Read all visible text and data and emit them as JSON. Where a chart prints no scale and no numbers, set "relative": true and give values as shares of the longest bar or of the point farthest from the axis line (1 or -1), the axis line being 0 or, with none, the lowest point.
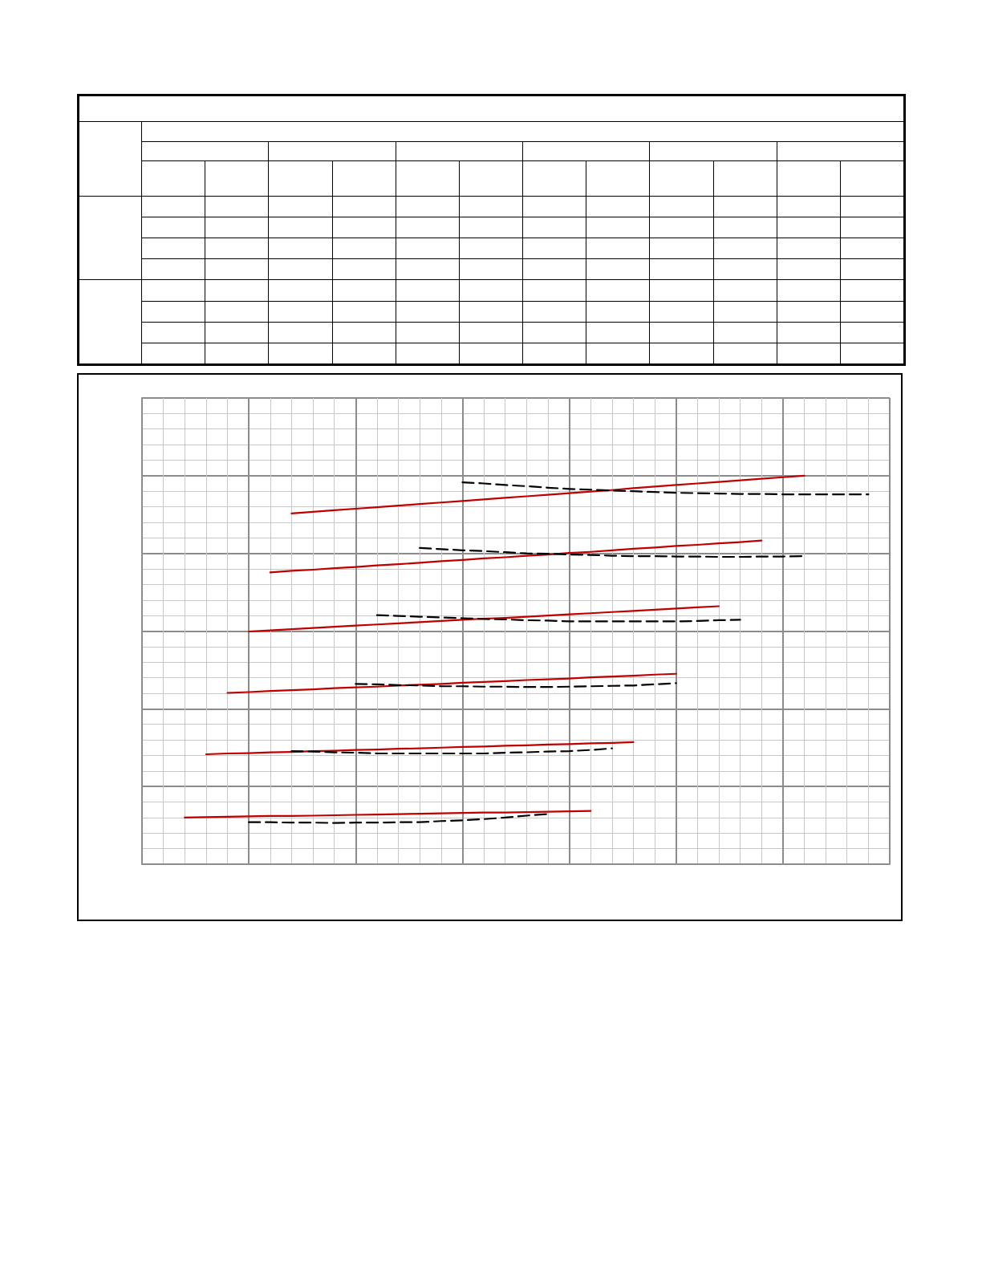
{
  "chart_data": {
    "type": "line",
    "relative": true,
    "grid": true,
    "marker": "none",
    "categories": [
      null,
      null,
      null,
      null,
      null,
      null,
      null,
      null,
      null,
      null,
      null,
      null,
      null,
      null,
      null,
      null,
      null,
      null,
      null,
      null,
      null,
      null,
      null,
      null,
      null,
      null,
      null,
      null,
      null,
      null,
      null,
      null,
      null,
      null,
      null,
      null
    ],
    "series": [
      {
        "color": "#c00000",
        "line_style": "solid",
        "values": [
          null,
          null,
          null,
          null,
          null,
          null,
          null,
          0.903,
          0.907,
          0.911,
          0.915,
          0.919,
          0.923,
          0.927,
          0.931,
          0.935,
          0.939,
          0.943,
          0.947,
          0.951,
          0.955,
          0.959,
          0.963,
          0.968,
          0.972,
          0.976,
          0.98,
          0.984,
          0.988,
          0.992,
          0.996,
          1.0,
          null,
          null,
          null,
          null
        ]
      },
      {
        "color": "#c00000",
        "line_style": "solid",
        "values": [
          null,
          null,
          null,
          null,
          null,
          null,
          0.751,
          0.755,
          0.758,
          0.762,
          0.765,
          0.769,
          0.772,
          0.776,
          0.78,
          0.783,
          0.787,
          0.79,
          0.794,
          0.797,
          0.801,
          0.804,
          0.808,
          0.812,
          0.815,
          0.819,
          0.822,
          0.826,
          0.829,
          0.833,
          null,
          null,
          null,
          null,
          null,
          null
        ]
      },
      {
        "color": "#c00000",
        "line_style": "solid",
        "values": [
          null,
          null,
          null,
          null,
          null,
          0.599,
          0.602,
          0.605,
          0.608,
          0.611,
          0.614,
          0.617,
          0.62,
          0.623,
          0.626,
          0.629,
          0.632,
          0.634,
          0.637,
          0.64,
          0.643,
          0.646,
          0.649,
          0.652,
          0.655,
          0.658,
          0.661,
          0.664,
          null,
          null,
          null,
          null,
          null,
          null,
          null,
          null
        ]
      },
      {
        "color": "#c00000",
        "line_style": "solid",
        "values": [
          null,
          null,
          null,
          null,
          0.441,
          0.443,
          0.446,
          0.448,
          0.45,
          0.453,
          0.455,
          0.457,
          0.46,
          0.462,
          0.464,
          0.467,
          0.469,
          0.471,
          0.474,
          0.476,
          0.478,
          0.481,
          0.483,
          0.485,
          0.488,
          0.49,
          null,
          null,
          null,
          null,
          null,
          null,
          null,
          null,
          null,
          null
        ]
      },
      {
        "color": "#c00000",
        "line_style": "solid",
        "values": [
          null,
          null,
          null,
          0.283,
          0.285,
          0.286,
          0.288,
          0.289,
          0.291,
          0.292,
          0.294,
          0.295,
          0.297,
          0.298,
          0.3,
          0.302,
          0.303,
          0.305,
          0.306,
          0.308,
          0.309,
          0.311,
          0.312,
          0.314,
          null,
          null,
          null,
          null,
          null,
          null,
          null,
          null,
          null,
          null,
          null,
          null
        ]
      },
      {
        "color": "#c00000",
        "line_style": "solid",
        "values": [
          null,
          null,
          0.12,
          0.121,
          0.122,
          0.123,
          0.124,
          0.124,
          0.125,
          0.126,
          0.127,
          0.128,
          0.129,
          0.13,
          0.131,
          0.132,
          0.133,
          0.133,
          0.134,
          0.135,
          0.136,
          0.137,
          null,
          null,
          null,
          null,
          null,
          null,
          null,
          null,
          null,
          null,
          null,
          null,
          null,
          null
        ]
      },
      {
        "color": "#000000",
        "line_style": "dashed",
        "values": [
          null,
          null,
          null,
          null,
          null,
          null,
          null,
          null,
          null,
          null,
          null,
          null,
          null,
          null,
          null,
          0.983,
          0.98,
          0.976,
          0.973,
          0.969,
          0.966,
          0.964,
          0.962,
          0.96,
          0.958,
          0.956,
          0.955,
          0.954,
          0.953,
          0.953,
          0.952,
          0.952,
          0.952,
          0.952,
          0.952,
          null
        ]
      },
      {
        "color": "#000000",
        "line_style": "dashed",
        "values": [
          null,
          null,
          null,
          null,
          null,
          null,
          null,
          null,
          null,
          null,
          null,
          null,
          null,
          0.814,
          0.811,
          0.808,
          0.806,
          0.803,
          0.8,
          0.799,
          0.797,
          0.796,
          0.794,
          0.793,
          0.793,
          0.792,
          0.792,
          0.791,
          0.791,
          0.792,
          0.792,
          0.793,
          null,
          null,
          null,
          null
        ]
      },
      {
        "color": "#000000",
        "line_style": "dashed",
        "values": [
          null,
          null,
          null,
          null,
          null,
          null,
          null,
          null,
          null,
          null,
          null,
          0.641,
          0.639,
          0.637,
          0.635,
          0.633,
          0.631,
          0.63,
          0.628,
          0.627,
          0.625,
          0.625,
          0.625,
          0.625,
          0.625,
          0.625,
          0.626,
          0.628,
          0.629,
          null,
          null,
          null,
          null,
          null,
          null,
          null
        ]
      },
      {
        "color": "#000000",
        "line_style": "dashed",
        "values": [
          null,
          null,
          null,
          null,
          null,
          null,
          null,
          null,
          null,
          null,
          0.464,
          0.463,
          0.461,
          0.46,
          0.458,
          0.458,
          0.457,
          0.457,
          0.456,
          0.456,
          0.457,
          0.458,
          0.459,
          0.46,
          0.463,
          0.466,
          null,
          null,
          null,
          null,
          null,
          null,
          null,
          null,
          null,
          null
        ]
      },
      {
        "color": "#000000",
        "line_style": "dashed",
        "values": [
          null,
          null,
          null,
          null,
          null,
          null,
          null,
          0.291,
          0.29,
          0.288,
          0.287,
          0.285,
          0.285,
          0.285,
          0.285,
          0.285,
          0.285,
          0.287,
          0.288,
          0.29,
          0.291,
          0.294,
          0.298,
          null,
          null,
          null,
          null,
          null,
          null,
          null,
          null,
          null,
          null,
          null,
          null,
          null
        ]
      },
      {
        "color": "#000000",
        "line_style": "dashed",
        "values": [
          null,
          null,
          null,
          null,
          null,
          0.108,
          0.108,
          0.107,
          0.107,
          0.106,
          0.107,
          0.107,
          0.108,
          0.108,
          0.111,
          0.113,
          0.116,
          0.12,
          0.125,
          0.129,
          null,
          null,
          null,
          null,
          null,
          null,
          null,
          null,
          null,
          null,
          null,
          null,
          null,
          null,
          null,
          null
        ]
      }
    ]
  }
}
